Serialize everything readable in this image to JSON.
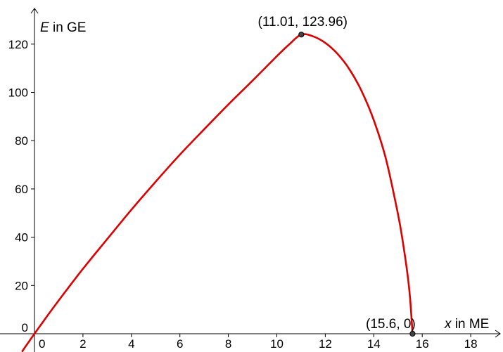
{
  "chart_data": {
    "type": "line",
    "x_axis": {
      "variable": "x",
      "unit_label": " in ME",
      "range": [
        -0.5,
        18.9
      ],
      "ticks": [
        0,
        2,
        4,
        6,
        8,
        10,
        12,
        14,
        16,
        18
      ],
      "tick_labels": [
        "0",
        "2",
        "4",
        "6",
        "8",
        "10",
        "12",
        "14",
        "16",
        "18"
      ]
    },
    "y_axis": {
      "variable": "E",
      "unit_label": " in GE",
      "range": [
        -3,
        133
      ],
      "ticks": [
        0,
        20,
        40,
        60,
        80,
        100,
        120
      ],
      "tick_labels": [
        "0",
        "20",
        "40",
        "60",
        "80",
        "100",
        "120"
      ]
    },
    "grid": false,
    "series": [
      {
        "color": "#dd0000",
        "x": [
          -0.5,
          0,
          0.5,
          1,
          2,
          3,
          4,
          5,
          6,
          7,
          8,
          9,
          10,
          10.5,
          11.01,
          11.5,
          12,
          12.5,
          13,
          13.5,
          14,
          14.5,
          15,
          15.2,
          15.4,
          15.5,
          15.6
        ],
        "y": [
          -7.2,
          0,
          7.0,
          13.8,
          26.9,
          39.2,
          51.4,
          63.0,
          74.2,
          84.7,
          95.0,
          104.9,
          115.0,
          119.8,
          123.96,
          123.2,
          120.5,
          116.0,
          109.5,
          100.5,
          88.5,
          72.5,
          49.5,
          38.0,
          24.0,
          14.5,
          0
        ]
      }
    ],
    "points": [
      {
        "x": 11.01,
        "y": 123.96,
        "label": "(11.01, 123.96)"
      },
      {
        "x": 15.6,
        "y": 0,
        "label": "(15.6, 0)"
      }
    ]
  }
}
